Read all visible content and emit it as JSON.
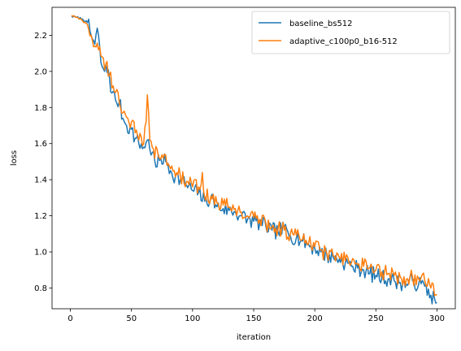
{
  "chart_data": {
    "type": "line",
    "title": "",
    "xlabel": "iteration",
    "ylabel": "loss",
    "xlim": [
      -15,
      315
    ],
    "ylim": [
      0.685,
      2.355
    ],
    "x_ticks": [
      0,
      50,
      100,
      150,
      200,
      250,
      300
    ],
    "y_ticks": [
      0.8,
      1.0,
      1.2,
      1.4,
      1.6,
      1.8,
      2.0,
      2.2
    ],
    "grid": false,
    "legend_position": "top-right",
    "series": [
      {
        "name": "baseline_bs512",
        "color": "#1f77b4",
        "anchors": [
          [
            1,
            2.305
          ],
          [
            5,
            2.3
          ],
          [
            10,
            2.29
          ],
          [
            14,
            2.27
          ],
          [
            17,
            2.2
          ],
          [
            20,
            2.15
          ],
          [
            22,
            2.24
          ],
          [
            25,
            2.05
          ],
          [
            28,
            2.0
          ],
          [
            31,
            2.01
          ],
          [
            34,
            1.88
          ],
          [
            37,
            1.84
          ],
          [
            40,
            1.83
          ],
          [
            43,
            1.74
          ],
          [
            46,
            1.7
          ],
          [
            50,
            1.68
          ],
          [
            53,
            1.63
          ],
          [
            56,
            1.6
          ],
          [
            60,
            1.58
          ],
          [
            63,
            1.62
          ],
          [
            67,
            1.55
          ],
          [
            70,
            1.47
          ],
          [
            74,
            1.52
          ],
          [
            78,
            1.5
          ],
          [
            82,
            1.45
          ],
          [
            86,
            1.42
          ],
          [
            90,
            1.4
          ],
          [
            95,
            1.37
          ],
          [
            100,
            1.34
          ],
          [
            105,
            1.33
          ],
          [
            110,
            1.28
          ],
          [
            115,
            1.3
          ],
          [
            120,
            1.25
          ],
          [
            125,
            1.24
          ],
          [
            130,
            1.23
          ],
          [
            135,
            1.22
          ],
          [
            140,
            1.2
          ],
          [
            145,
            1.18
          ],
          [
            150,
            1.17
          ],
          [
            155,
            1.16
          ],
          [
            160,
            1.14
          ],
          [
            165,
            1.12
          ],
          [
            170,
            1.11
          ],
          [
            175,
            1.13
          ],
          [
            180,
            1.09
          ],
          [
            185,
            1.08
          ],
          [
            190,
            1.06
          ],
          [
            195,
            1.04
          ],
          [
            200,
            1.02
          ],
          [
            205,
            1.0
          ],
          [
            210,
            0.98
          ],
          [
            215,
            0.97
          ],
          [
            220,
            0.96
          ],
          [
            225,
            0.94
          ],
          [
            230,
            0.92
          ],
          [
            235,
            0.91
          ],
          [
            240,
            0.9
          ],
          [
            245,
            0.88
          ],
          [
            250,
            0.87
          ],
          [
            255,
            0.86
          ],
          [
            260,
            0.85
          ],
          [
            265,
            0.84
          ],
          [
            270,
            0.83
          ],
          [
            275,
            0.82
          ],
          [
            280,
            0.84
          ],
          [
            285,
            0.82
          ],
          [
            290,
            0.81
          ],
          [
            295,
            0.76
          ],
          [
            300,
            0.72
          ]
        ]
      },
      {
        "name": "adaptive_c100p0_b16-512",
        "color": "#ff7f0e",
        "anchors": [
          [
            1,
            2.31
          ],
          [
            5,
            2.3
          ],
          [
            10,
            2.28
          ],
          [
            14,
            2.26
          ],
          [
            17,
            2.2
          ],
          [
            20,
            2.14
          ],
          [
            23,
            2.12
          ],
          [
            26,
            2.08
          ],
          [
            29,
            2.04
          ],
          [
            32,
            1.98
          ],
          [
            35,
            1.92
          ],
          [
            38,
            1.9
          ],
          [
            41,
            1.8
          ],
          [
            44,
            1.78
          ],
          [
            47,
            1.74
          ],
          [
            50,
            1.72
          ],
          [
            53,
            1.66
          ],
          [
            56,
            1.62
          ],
          [
            60,
            1.6
          ],
          [
            62,
            1.72
          ],
          [
            63,
            1.87
          ],
          [
            65,
            1.62
          ],
          [
            68,
            1.57
          ],
          [
            72,
            1.53
          ],
          [
            76,
            1.52
          ],
          [
            80,
            1.49
          ],
          [
            85,
            1.45
          ],
          [
            90,
            1.42
          ],
          [
            95,
            1.39
          ],
          [
            100,
            1.36
          ],
          [
            105,
            1.36
          ],
          [
            108,
            1.44
          ],
          [
            110,
            1.3
          ],
          [
            115,
            1.31
          ],
          [
            120,
            1.27
          ],
          [
            125,
            1.26
          ],
          [
            130,
            1.25
          ],
          [
            135,
            1.24
          ],
          [
            140,
            1.22
          ],
          [
            145,
            1.2
          ],
          [
            150,
            1.19
          ],
          [
            155,
            1.18
          ],
          [
            160,
            1.16
          ],
          [
            165,
            1.14
          ],
          [
            170,
            1.13
          ],
          [
            175,
            1.12
          ],
          [
            180,
            1.1
          ],
          [
            185,
            1.09
          ],
          [
            190,
            1.07
          ],
          [
            195,
            1.05
          ],
          [
            200,
            1.03
          ],
          [
            205,
            1.01
          ],
          [
            210,
            0.99
          ],
          [
            215,
            0.98
          ],
          [
            220,
            0.97
          ],
          [
            225,
            0.95
          ],
          [
            230,
            0.94
          ],
          [
            235,
            0.93
          ],
          [
            240,
            0.92
          ],
          [
            245,
            0.91
          ],
          [
            250,
            0.9
          ],
          [
            255,
            0.89
          ],
          [
            260,
            0.88
          ],
          [
            265,
            0.87
          ],
          [
            270,
            0.86
          ],
          [
            275,
            0.85
          ],
          [
            280,
            0.86
          ],
          [
            285,
            0.85
          ],
          [
            290,
            0.84
          ],
          [
            295,
            0.8
          ],
          [
            300,
            0.76
          ]
        ]
      }
    ]
  }
}
